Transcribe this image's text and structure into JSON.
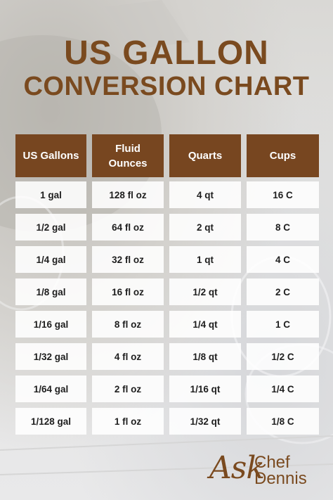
{
  "title": {
    "line1": "US GALLON",
    "line2": "CONVERSION CHART"
  },
  "table": {
    "headers": [
      "US Gallons",
      "Fluid\nOunces",
      "Quarts",
      "Cups"
    ],
    "rows": [
      [
        "1 gal",
        "128 fl oz",
        "4 qt",
        "16 C"
      ],
      [
        "1/2 gal",
        "64 fl oz",
        "2 qt",
        "8 C"
      ],
      [
        "1/4 gal",
        "32 fl oz",
        "1 qt",
        "4 C"
      ],
      [
        "1/8 gal",
        "16 fl oz",
        "1/2 qt",
        "2 C"
      ],
      [
        "1/16 gal",
        "8 fl oz",
        "1/4 qt",
        "1 C"
      ],
      [
        "1/32 gal",
        "4 fl oz",
        "1/8 qt",
        "1/2 C"
      ],
      [
        "1/64 gal",
        "2 fl oz",
        "1/16 qt",
        "1/4 C"
      ],
      [
        "1/128 gal",
        "1 fl oz",
        "1/32 qt",
        "1/8 C"
      ]
    ]
  },
  "logo": {
    "ask": "Ask",
    "chef": "Chef",
    "dennis": "Dennis"
  },
  "colors": {
    "brand_brown": "#774620",
    "title_brown": "#7a4a1f"
  }
}
